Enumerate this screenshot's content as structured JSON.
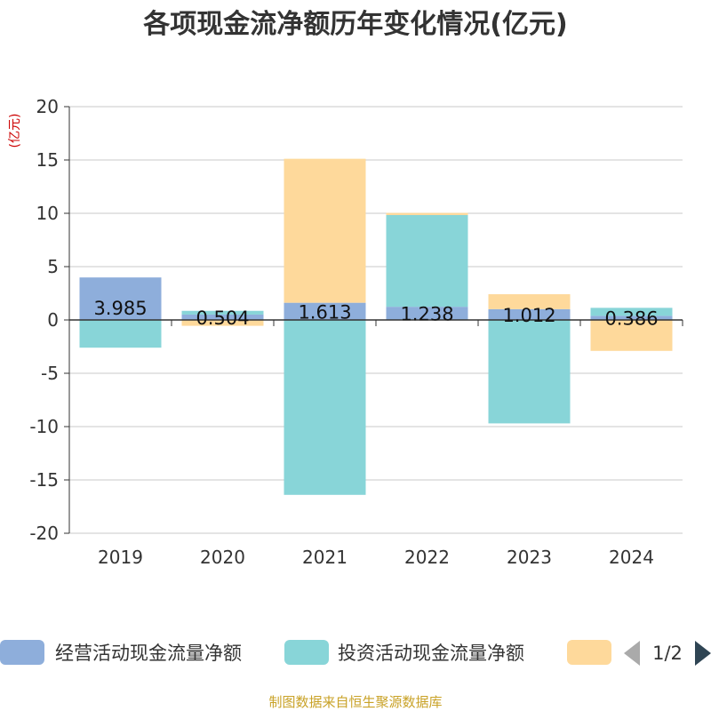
{
  "chart_data": {
    "type": "bar",
    "stacked": true,
    "title": "各项现金流净额历年变化情况(亿元)",
    "ylabel": "(亿元)",
    "ylim": [
      -20,
      20
    ],
    "yticks": [
      20,
      15,
      10,
      5,
      0,
      -5,
      -10,
      -15,
      -20
    ],
    "grid": true,
    "legend_position": "bottom",
    "categories": [
      "2019",
      "2020",
      "2021",
      "2022",
      "2023",
      "2024"
    ],
    "series": [
      {
        "name": "经营活动现金流量净额",
        "color": "#8eaedb",
        "values": [
          3.985,
          0.504,
          1.613,
          1.238,
          1.012,
          0.386
        ],
        "labels": [
          "3.985",
          "0.504",
          "1.613",
          "1.238",
          "1.012",
          "0.386"
        ]
      },
      {
        "name": "投资活动现金流量净额",
        "color": "#88d5d8",
        "values": [
          -2.6,
          0.35,
          -16.4,
          8.6,
          -9.7,
          0.75
        ]
      },
      {
        "name": "",
        "color": "#fed99b",
        "values": [
          0,
          -0.55,
          13.5,
          0.2,
          1.4,
          -2.9
        ]
      }
    ],
    "legend": {
      "page": "1/2"
    }
  },
  "source": "制图数据来自恒生聚源数据库"
}
